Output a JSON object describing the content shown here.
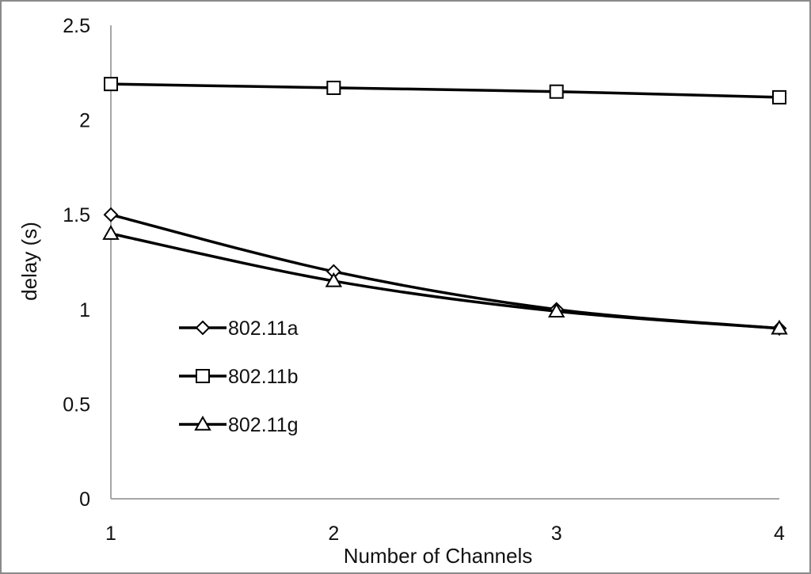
{
  "chart_data": {
    "type": "line",
    "title": "",
    "xlabel": "Number of Channels",
    "ylabel": "delay (s)",
    "categories": [
      "1",
      "2",
      "3",
      "4"
    ],
    "x": [
      1,
      2,
      3,
      4
    ],
    "xlim": [
      1,
      4
    ],
    "ylim": [
      0,
      2.5
    ],
    "yticks": [
      "0",
      "0.5",
      "1",
      "1.5",
      "2",
      "2.5"
    ],
    "grid": false,
    "legend_position": "left",
    "series": [
      {
        "name": "802.11a",
        "marker": "diamond",
        "values": [
          1.5,
          1.2,
          1.0,
          0.9
        ]
      },
      {
        "name": "802.11b",
        "marker": "square",
        "values": [
          2.19,
          2.17,
          2.15,
          2.12
        ]
      },
      {
        "name": "802.11g",
        "marker": "triangle",
        "values": [
          1.4,
          1.15,
          0.99,
          0.9
        ]
      }
    ],
    "colors": {
      "line": "#000000",
      "axis": "#a6a6a6",
      "text": "#111111"
    }
  }
}
